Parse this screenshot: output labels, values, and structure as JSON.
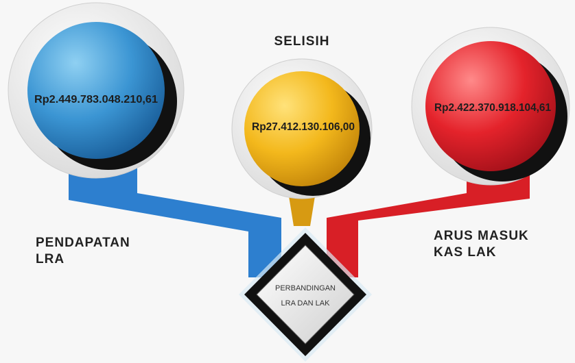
{
  "nodes": [
    {
      "value": "Rp2.449.783.048.210,61",
      "label": [
        "PENDAPATAN",
        "LRA"
      ]
    },
    {
      "value": "Rp27.412.130.106,00",
      "label": [
        "SELISIH"
      ]
    },
    {
      "value": "Rp2.422.370.918.104,61",
      "label": [
        "ARUS MASUK",
        "KAS LAK"
      ]
    }
  ],
  "center": {
    "label": [
      "PERBANDINGAN",
      "LRA DAN LAK"
    ]
  }
}
